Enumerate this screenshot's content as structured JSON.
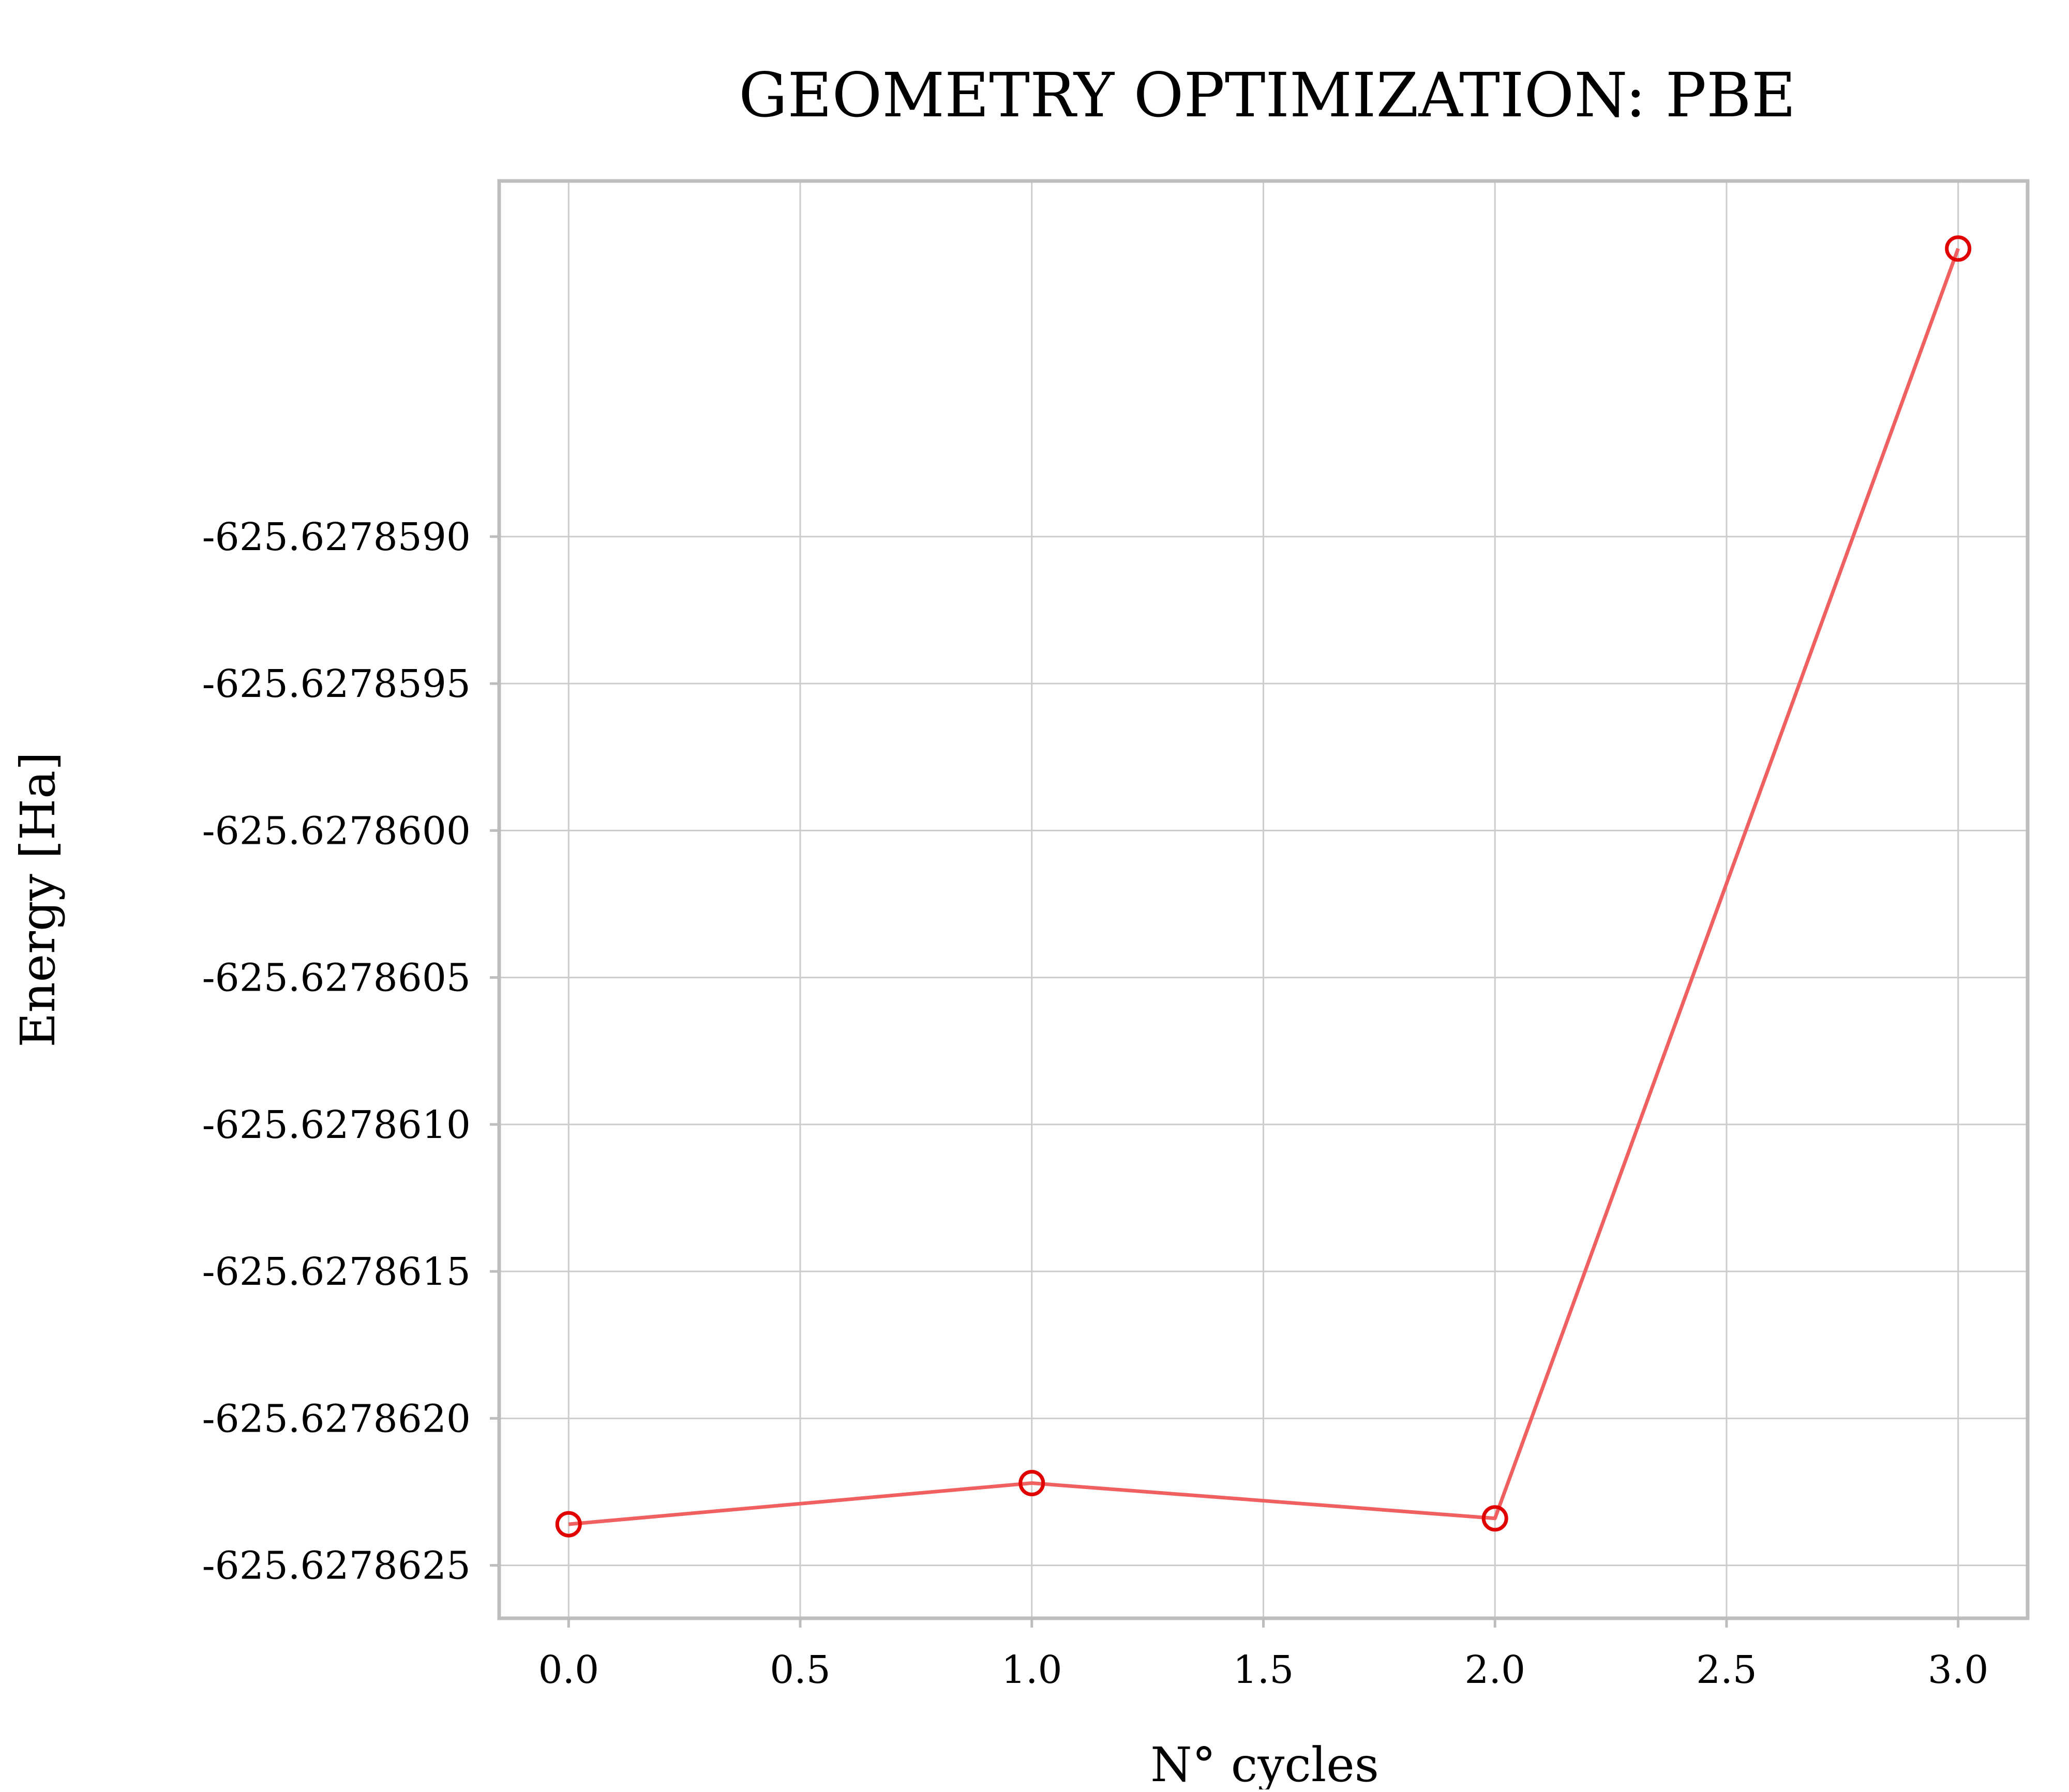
{
  "chart_data": {
    "type": "line",
    "title": "GEOMETRY OPTIMIZATION: PBE",
    "xlabel": "N° cycles",
    "ylabel": "Energy [Ha]",
    "x": [
      0,
      1,
      2,
      3
    ],
    "series": [
      {
        "values": [
          -625.62786236,
          -625.62786222,
          -625.62786234,
          -625.62785802
        ]
      }
    ],
    "xlim": [
      -0.15,
      3.15
    ],
    "ylim": [
      -625.62786268,
      -625.62785779
    ],
    "xticks": [
      0.0,
      0.5,
      1.0,
      1.5,
      2.0,
      2.5,
      3.0
    ],
    "xtick_labels": [
      "0.0",
      "0.5",
      "1.0",
      "1.5",
      "2.0",
      "2.5",
      "3.0"
    ],
    "yticks": [
      -625.627859,
      -625.6278595,
      -625.62786,
      -625.6278605,
      -625.627861,
      -625.6278615,
      -625.627862,
      -625.6278625
    ],
    "ytick_labels": [
      "-625.6278590",
      "-625.6278595",
      "-625.6278600",
      "-625.6278605",
      "-625.6278610",
      "-625.6278615",
      "-625.6278620",
      "-625.6278625"
    ],
    "grid": true,
    "colors": {
      "line": "#f06060",
      "marker": "#e00000",
      "grid": "#cccccc",
      "frame": "#bdbdbd"
    }
  }
}
